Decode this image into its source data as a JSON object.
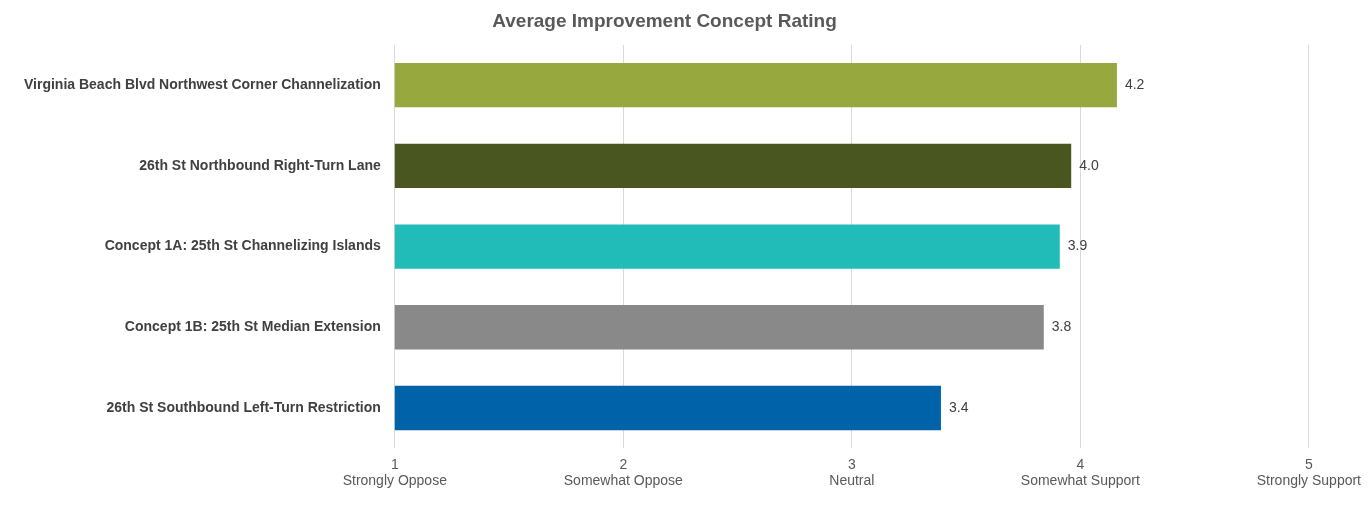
{
  "chart_data": {
    "type": "bar",
    "orientation": "horizontal",
    "title": "Average Improvement Concept Rating",
    "categories": [
      "Virginia Beach Blvd Northwest Corner Channelization",
      "26th St Northbound Right-Turn Lane",
      "Concept 1A: 25th St Channelizing Islands",
      "Concept 1B: 25th St Median Extension",
      "26th St Southbound Left-Turn Restriction"
    ],
    "values": [
      4.16,
      3.96,
      3.91,
      3.84,
      3.39
    ],
    "value_labels": [
      "4.2",
      "4.0",
      "3.9",
      "3.8",
      "3.4"
    ],
    "colors": [
      "#96a83e",
      "#4a561f",
      "#22bcb8",
      "#898989",
      "#0062a8"
    ],
    "xlim": [
      1,
      5
    ],
    "xticks": [
      {
        "value": 1,
        "label": "1\nStrongly Oppose"
      },
      {
        "value": 2,
        "label": "2\nSomewhat Oppose"
      },
      {
        "value": 3,
        "label": "3\nNeutral"
      },
      {
        "value": 4,
        "label": "4\nSomewhat Support"
      },
      {
        "value": 5,
        "label": "5\nStrongly Support"
      }
    ],
    "grid": "x",
    "legend": false
  }
}
